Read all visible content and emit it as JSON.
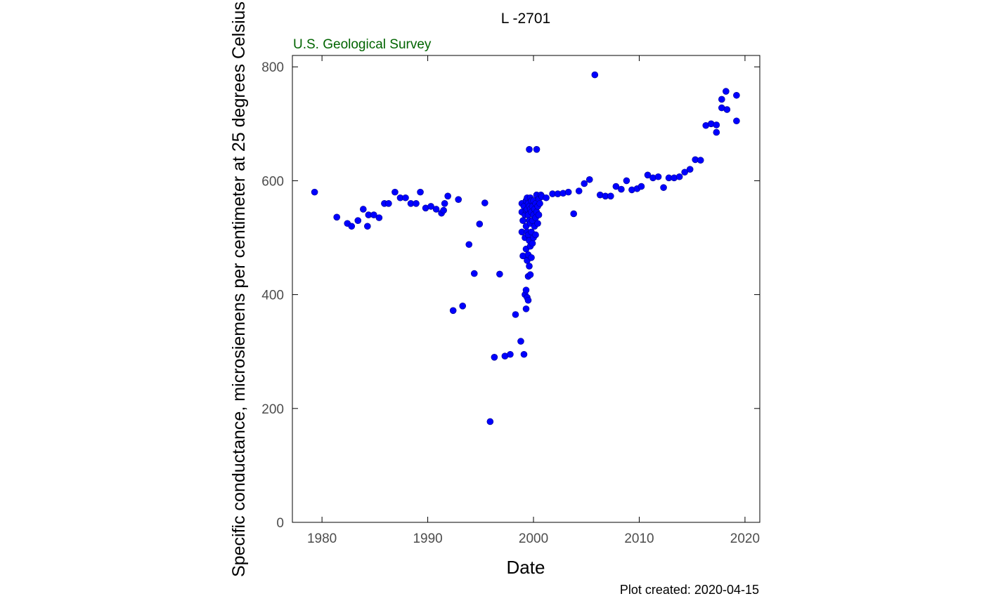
{
  "chart_data": {
    "type": "scatter",
    "title": "L  -2701",
    "agency": "U.S. Geological Survey",
    "xlabel": "Date",
    "ylabel": "Specific conductance, microsiemens per centimeter at 25 degrees Celsius",
    "footnote": "Plot created: 2020-04-15",
    "xlim": [
      1977.2,
      2021.4
    ],
    "ylim": [
      0,
      820
    ],
    "xticks": [
      1980,
      1990,
      2000,
      2010,
      2020
    ],
    "yticks": [
      0,
      200,
      400,
      600,
      800
    ],
    "grid": false,
    "colors": {
      "points": "#0000ff",
      "agency": "#006400",
      "axis": "#000000",
      "tick_text": "#4d4d4d"
    },
    "series": [
      {
        "points": [
          [
            1979.3,
            580
          ],
          [
            1981.4,
            536
          ],
          [
            1982.4,
            525
          ],
          [
            1982.8,
            520
          ],
          [
            1983.4,
            530
          ],
          [
            1983.9,
            550
          ],
          [
            1984.3,
            520
          ],
          [
            1984.4,
            540
          ],
          [
            1984.9,
            540
          ],
          [
            1985.4,
            535
          ],
          [
            1985.9,
            560
          ],
          [
            1986.3,
            560
          ],
          [
            1986.9,
            580
          ],
          [
            1987.4,
            570
          ],
          [
            1987.9,
            570
          ],
          [
            1988.4,
            560
          ],
          [
            1988.9,
            560
          ],
          [
            1989.3,
            580
          ],
          [
            1989.8,
            552
          ],
          [
            1990.3,
            555
          ],
          [
            1990.8,
            550
          ],
          [
            1991.3,
            543
          ],
          [
            1991.5,
            548
          ],
          [
            1991.6,
            560
          ],
          [
            1991.9,
            573
          ],
          [
            1992.4,
            372
          ],
          [
            1992.9,
            567
          ],
          [
            1993.3,
            380
          ],
          [
            1993.9,
            488
          ],
          [
            1994.4,
            437
          ],
          [
            1994.9,
            524
          ],
          [
            1995.4,
            561
          ],
          [
            1995.9,
            177
          ],
          [
            1996.3,
            290
          ],
          [
            1996.8,
            436
          ],
          [
            1997.3,
            292
          ],
          [
            1997.8,
            295
          ],
          [
            1998.3,
            365
          ],
          [
            1998.8,
            318
          ],
          [
            1998.9,
            510
          ],
          [
            1998.9,
            545
          ],
          [
            1998.9,
            560
          ],
          [
            1999.0,
            468
          ],
          [
            1999.0,
            530
          ],
          [
            1999.1,
            555
          ],
          [
            1999.1,
            295
          ],
          [
            1999.2,
            400
          ],
          [
            1999.2,
            500
          ],
          [
            1999.2,
            540
          ],
          [
            1999.3,
            375
          ],
          [
            1999.3,
            408
          ],
          [
            1999.3,
            480
          ],
          [
            1999.3,
            520
          ],
          [
            1999.3,
            548
          ],
          [
            1999.3,
            565
          ],
          [
            1999.4,
            395
          ],
          [
            1999.4,
            460
          ],
          [
            1999.4,
            510
          ],
          [
            1999.4,
            550
          ],
          [
            1999.4,
            570
          ],
          [
            1999.5,
            390
          ],
          [
            1999.5,
            432
          ],
          [
            1999.5,
            470
          ],
          [
            1999.5,
            505
          ],
          [
            1999.5,
            540
          ],
          [
            1999.5,
            560
          ],
          [
            1999.6,
            655
          ],
          [
            1999.6,
            450
          ],
          [
            1999.6,
            495
          ],
          [
            1999.6,
            530
          ],
          [
            1999.6,
            555
          ],
          [
            1999.7,
            435
          ],
          [
            1999.7,
            485
          ],
          [
            1999.7,
            525
          ],
          [
            1999.7,
            550
          ],
          [
            1999.7,
            570
          ],
          [
            1999.8,
            465
          ],
          [
            1999.8,
            510
          ],
          [
            1999.8,
            545
          ],
          [
            1999.8,
            565
          ],
          [
            1999.9,
            490
          ],
          [
            1999.9,
            530
          ],
          [
            1999.9,
            555
          ],
          [
            2000.0,
            500
          ],
          [
            2000.0,
            540
          ],
          [
            2000.0,
            565
          ],
          [
            2000.1,
            520
          ],
          [
            2000.1,
            550
          ],
          [
            2000.2,
            505
          ],
          [
            2000.2,
            535
          ],
          [
            2000.2,
            560
          ],
          [
            2000.3,
            655
          ],
          [
            2000.3,
            545
          ],
          [
            2000.3,
            575
          ],
          [
            2000.4,
            525
          ],
          [
            2000.4,
            555
          ],
          [
            2000.5,
            540
          ],
          [
            2000.5,
            568
          ],
          [
            2000.6,
            560
          ],
          [
            2000.7,
            575
          ],
          [
            2000.8,
            572
          ],
          [
            2001.2,
            570
          ],
          [
            2001.8,
            577
          ],
          [
            2002.3,
            577
          ],
          [
            2002.8,
            578
          ],
          [
            2003.3,
            580
          ],
          [
            2003.8,
            542
          ],
          [
            2004.3,
            582
          ],
          [
            2004.8,
            595
          ],
          [
            2005.3,
            602
          ],
          [
            2005.8,
            786
          ],
          [
            2006.3,
            575
          ],
          [
            2006.8,
            573
          ],
          [
            2007.3,
            573
          ],
          [
            2007.8,
            590
          ],
          [
            2008.3,
            585
          ],
          [
            2008.8,
            600
          ],
          [
            2009.3,
            584
          ],
          [
            2009.8,
            586
          ],
          [
            2010.2,
            590
          ],
          [
            2010.8,
            610
          ],
          [
            2011.3,
            605
          ],
          [
            2011.8,
            607
          ],
          [
            2012.3,
            588
          ],
          [
            2012.8,
            605
          ],
          [
            2013.3,
            605
          ],
          [
            2013.8,
            607
          ],
          [
            2014.3,
            615
          ],
          [
            2014.8,
            620
          ],
          [
            2015.3,
            637
          ],
          [
            2015.8,
            636
          ],
          [
            2016.3,
            697
          ],
          [
            2016.8,
            700
          ],
          [
            2017.3,
            698
          ],
          [
            2017.3,
            685
          ],
          [
            2017.8,
            743
          ],
          [
            2017.8,
            728
          ],
          [
            2018.2,
            757
          ],
          [
            2018.3,
            725
          ],
          [
            2019.2,
            750
          ],
          [
            2019.2,
            705
          ]
        ]
      }
    ]
  }
}
